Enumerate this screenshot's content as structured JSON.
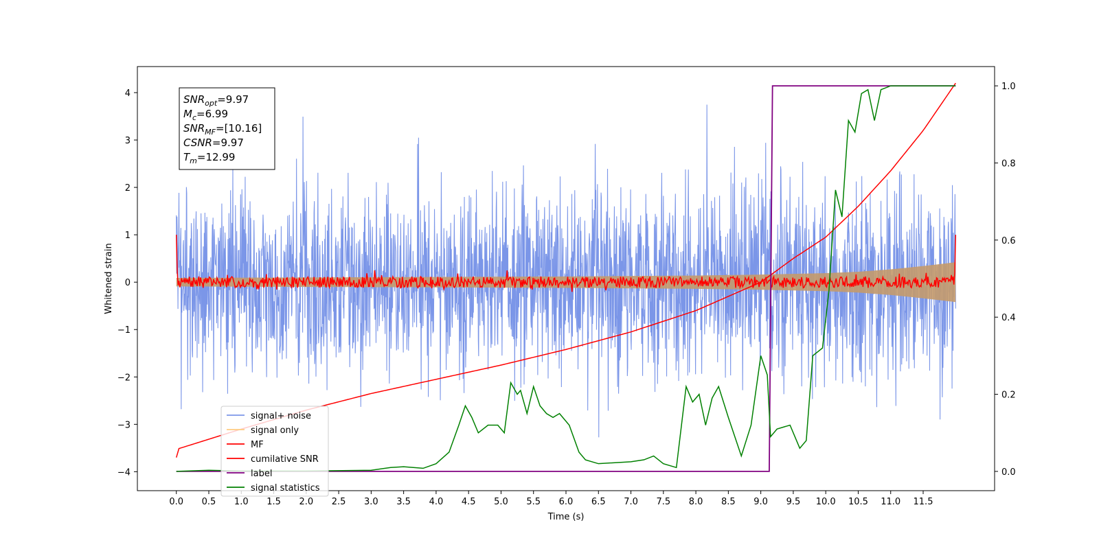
{
  "chart_data": {
    "type": "line",
    "xlabel": "Time (s)",
    "ylabel": "Whitened strain",
    "xlim": [
      -0.6,
      12.6
    ],
    "ylim": [
      -4.4,
      4.55
    ],
    "ylim_right": [
      -0.05,
      1.05
    ],
    "x_ticks": [
      0.0,
      0.5,
      1.0,
      1.5,
      2.0,
      2.5,
      3.0,
      3.5,
      4.0,
      4.5,
      5.0,
      5.5,
      6.0,
      6.5,
      7.0,
      7.5,
      8.0,
      8.5,
      9.0,
      9.5,
      10.0,
      10.5,
      11.0,
      11.5
    ],
    "x_tick_labels": [
      "0.0",
      "0.5",
      "1.0",
      "1.5",
      "2.0",
      "2.5",
      "3.0",
      "3.5",
      "4.0",
      "4.5",
      "5.0",
      "5.5",
      "6.0",
      "6.5",
      "7.0",
      "7.5",
      "8.0",
      "8.5",
      "9.0",
      "9.5",
      "10.0",
      "10.5",
      "11.0",
      "11.5"
    ],
    "y_ticks": [
      -4,
      -3,
      -2,
      -1,
      0,
      1,
      2,
      3,
      4
    ],
    "y_tick_labels": [
      "−4",
      "−3",
      "−2",
      "−1",
      "0",
      "1",
      "2",
      "3",
      "4"
    ],
    "y_right_ticks": [
      0.0,
      0.2,
      0.4,
      0.6,
      0.8,
      1.0
    ],
    "y_right_tick_labels": [
      "0.0",
      "0.2",
      "0.4",
      "0.6",
      "0.8",
      "1.0"
    ],
    "colors": {
      "signal_noise": "#7b96e8",
      "signal_only": "#c49a6c",
      "mf": "#ff0000",
      "cumulative": "#ff0000",
      "label": "#800080",
      "stats": "#008000"
    },
    "legend": {
      "position": "lower-left",
      "entries": [
        "signal+ noise",
        "signal only",
        "MF",
        "cumilative SNR",
        "label",
        "signal statistics"
      ]
    },
    "annotation": [
      {
        "base": "SNR",
        "sub": "opt",
        "value": "=9.97"
      },
      {
        "base": "M",
        "sub": "c",
        "value": "=6.99"
      },
      {
        "base": "SNR",
        "sub": "MF",
        "value": "=[10.16]"
      },
      {
        "base": "CSNR",
        "sub": "",
        "value": "=9.97"
      },
      {
        "base": "T",
        "sub": "m",
        "value": "=12.99"
      }
    ],
    "series": [
      {
        "name": "signal+ noise",
        "axis": "left",
        "description": "noisy whitened strain, approx. ±1 std, peaks to about ±4",
        "x_range": [
          0.0,
          12.0
        ],
        "noise_std": 1.0,
        "y_max": 4.17,
        "y_min": -3.9
      },
      {
        "name": "signal only",
        "axis": "left",
        "description": "chirp envelope amplitude",
        "x": [
          0.0,
          2.0,
          4.0,
          6.0,
          8.0,
          9.0,
          10.0,
          10.5,
          11.0,
          11.5,
          12.0
        ],
        "amplitude": [
          0.09,
          0.1,
          0.11,
          0.12,
          0.14,
          0.16,
          0.19,
          0.22,
          0.27,
          0.34,
          0.42
        ]
      },
      {
        "name": "MF",
        "axis": "left",
        "description": "matched-filter output fluctuating around 0, with spikes at ends",
        "x_range": [
          0.0,
          12.0
        ],
        "start_value": 1.0,
        "end_value": 1.0,
        "fluctuation": 0.12,
        "peak": 0.3
      },
      {
        "name": "cumilative SNR",
        "axis": "left",
        "x": [
          0.0,
          0.02,
          1.0,
          2.0,
          3.0,
          4.0,
          5.0,
          6.0,
          7.0,
          8.0,
          9.0,
          9.5,
          10.0,
          10.5,
          11.0,
          11.5,
          12.0
        ],
        "y": [
          -3.7,
          -3.52,
          -3.1,
          -2.7,
          -2.35,
          -2.05,
          -1.75,
          -1.42,
          -1.05,
          -0.6,
          0.0,
          0.5,
          0.95,
          1.6,
          2.35,
          3.2,
          4.2
        ]
      },
      {
        "name": "label",
        "axis": "right",
        "x": [
          0.0,
          9.13,
          9.18,
          12.0
        ],
        "y": [
          0.0,
          0.0,
          1.0,
          1.0
        ]
      },
      {
        "name": "signal statistics",
        "axis": "right",
        "x": [
          0.0,
          0.5,
          1.0,
          2.0,
          3.0,
          3.3,
          3.5,
          3.8,
          4.0,
          4.2,
          4.35,
          4.45,
          4.55,
          4.65,
          4.8,
          4.95,
          5.05,
          5.15,
          5.25,
          5.3,
          5.4,
          5.5,
          5.6,
          5.7,
          5.8,
          5.9,
          6.05,
          6.2,
          6.3,
          6.5,
          7.0,
          7.2,
          7.35,
          7.5,
          7.7,
          7.85,
          7.95,
          8.05,
          8.15,
          8.25,
          8.35,
          8.5,
          8.7,
          8.85,
          9.0,
          9.1,
          9.15,
          9.25,
          9.45,
          9.6,
          9.7,
          9.8,
          9.95,
          10.05,
          10.15,
          10.25,
          10.35,
          10.45,
          10.55,
          10.65,
          10.75,
          10.85,
          11.0,
          11.5,
          12.0
        ],
        "y": [
          0.0,
          0.003,
          0.001,
          0.001,
          0.003,
          0.01,
          0.012,
          0.008,
          0.02,
          0.05,
          0.12,
          0.17,
          0.14,
          0.1,
          0.12,
          0.12,
          0.1,
          0.23,
          0.2,
          0.21,
          0.15,
          0.22,
          0.17,
          0.15,
          0.14,
          0.15,
          0.12,
          0.05,
          0.03,
          0.02,
          0.025,
          0.03,
          0.04,
          0.02,
          0.01,
          0.22,
          0.18,
          0.2,
          0.12,
          0.19,
          0.22,
          0.14,
          0.04,
          0.12,
          0.3,
          0.25,
          0.09,
          0.11,
          0.12,
          0.06,
          0.08,
          0.3,
          0.32,
          0.47,
          0.73,
          0.66,
          0.91,
          0.88,
          0.98,
          0.99,
          0.91,
          0.99,
          1.0,
          1.0,
          1.0
        ]
      }
    ]
  }
}
